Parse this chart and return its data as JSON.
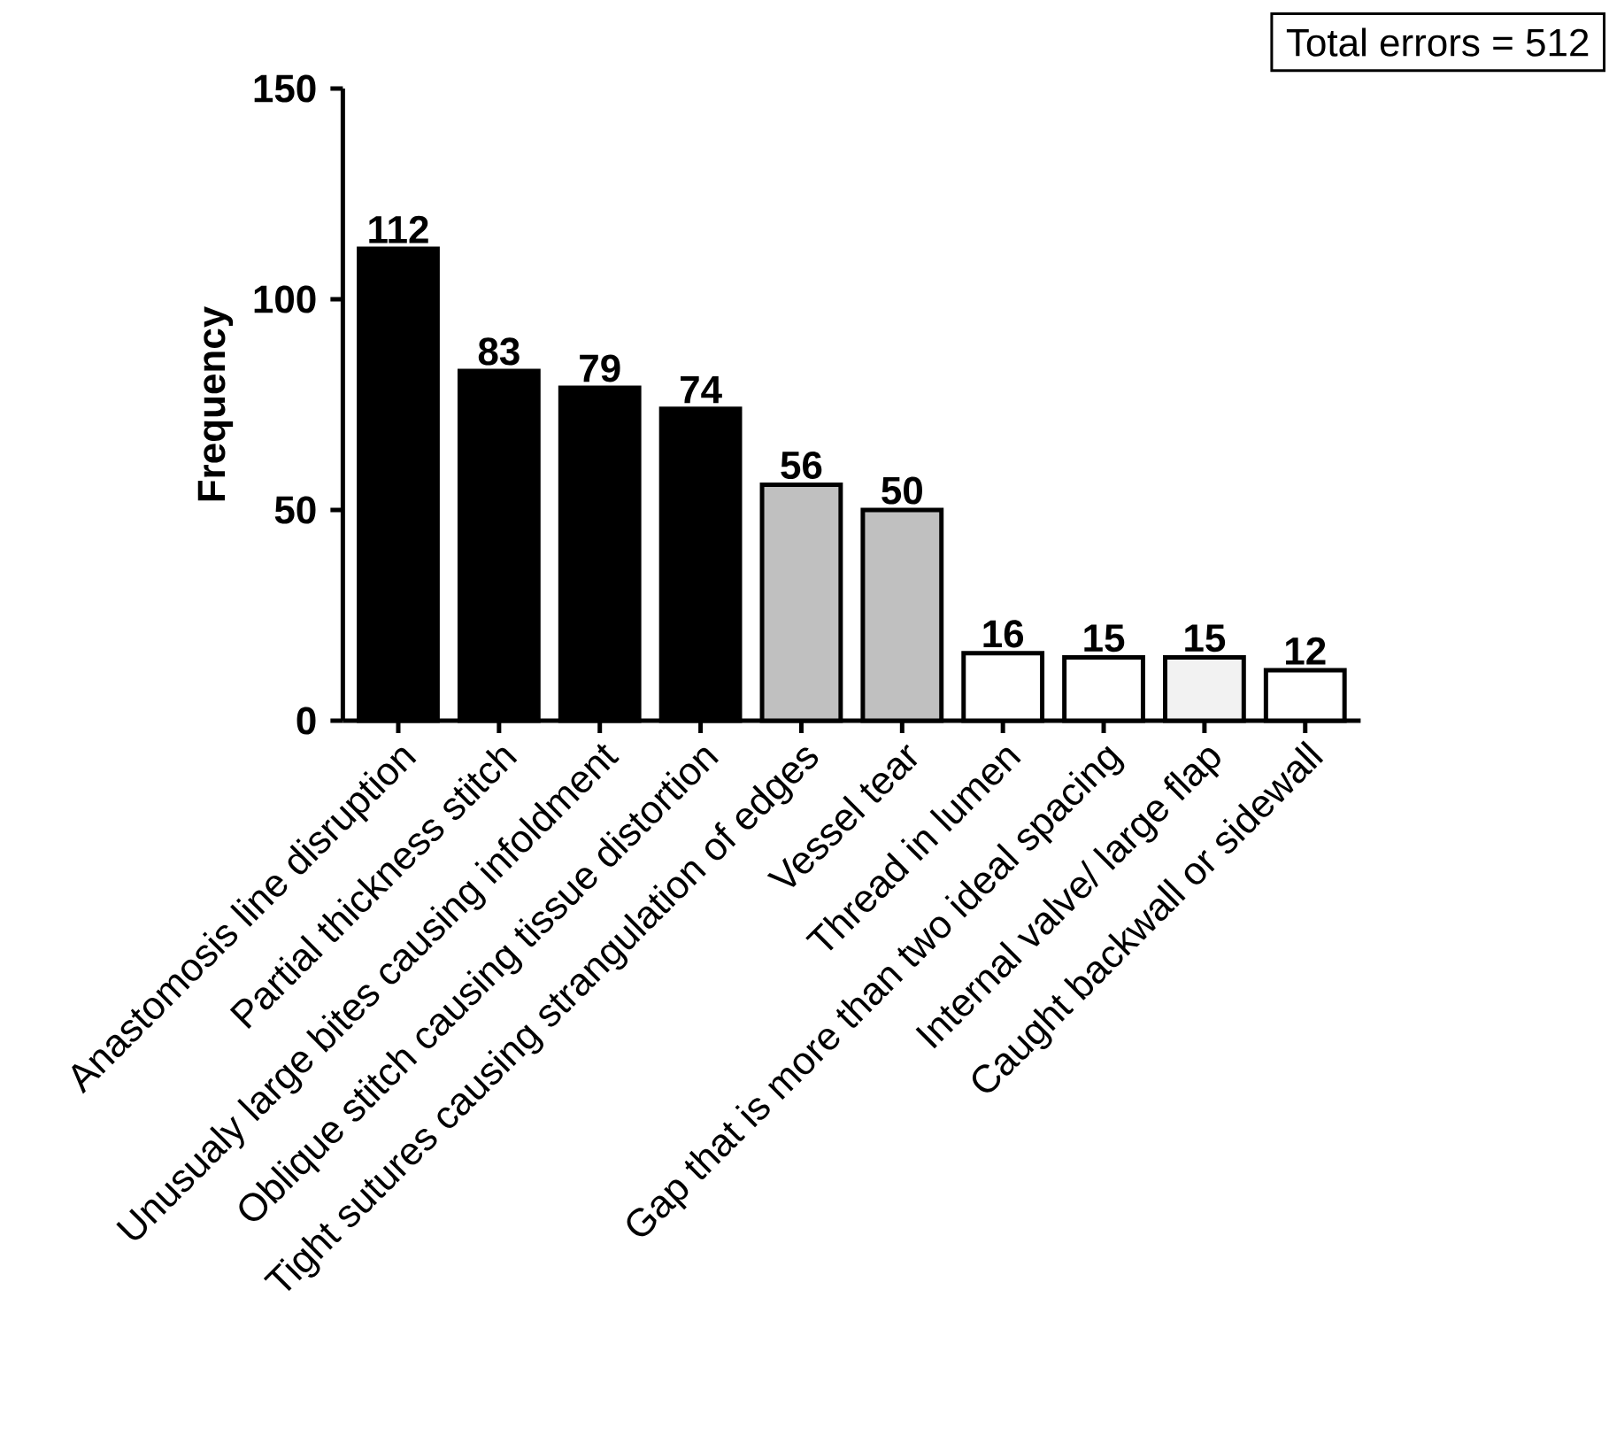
{
  "chart_data": {
    "type": "bar",
    "ylabel": "Frequency",
    "categories": [
      "Anastomosis line disruption",
      "Partial thickness stitch",
      "Unusualy large bites causing infoldment",
      "Oblique stitch causing tissue distortion",
      "Tight sutures causing strangulation of edges",
      "Vessel tear",
      "Thread in lumen",
      "Gap that is more than two ideal spacing",
      "Internal valve/ large flap",
      "Caught backwall or sidewall"
    ],
    "values": [
      112,
      83,
      79,
      74,
      56,
      50,
      16,
      15,
      15,
      12
    ],
    "colors": [
      "#000000",
      "#000000",
      "#000000",
      "#000000",
      "#c0c0c0",
      "#c0c0c0",
      "#ffffff",
      "#ffffff",
      "#f2f2f2",
      "#ffffff"
    ],
    "ylim": [
      0,
      150
    ],
    "yticks": [
      0,
      50,
      100,
      150
    ],
    "data_labels": true,
    "annotations": [
      "Total errors = 512"
    ]
  }
}
